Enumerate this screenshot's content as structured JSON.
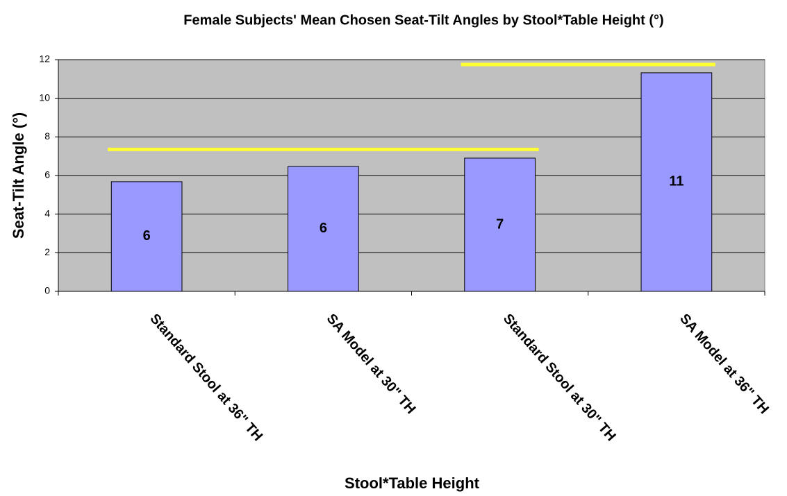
{
  "chart_data": {
    "type": "bar",
    "title": "Female Subjects' Mean Chosen Seat-Tilt Angles by Stool*Table Height (°)",
    "y_label": "Seat-Tilt Angle (°)",
    "x_label": "Stool*Table Height",
    "categories": [
      "Standard Stool at 36\" TH",
      "SA Model at 30\" TH",
      "Standard Stool at 30\" TH",
      "SA Model at 36\" TH"
    ],
    "values": [
      5.68,
      6.47,
      6.9,
      11.32
    ],
    "value_labels": [
      "6",
      "6",
      "7",
      "11"
    ],
    "color": "#9999ff",
    "ylim": [
      0,
      12
    ],
    "yticks": [
      0,
      2,
      4,
      6,
      8,
      10,
      12
    ],
    "grid": true,
    "bracket_lines": [
      {
        "y": 7.35,
        "from": 0,
        "to": 2,
        "color": "#ffff33"
      },
      {
        "y": 11.75,
        "from": 2,
        "to": 3,
        "color": "#ffff33"
      }
    ]
  }
}
